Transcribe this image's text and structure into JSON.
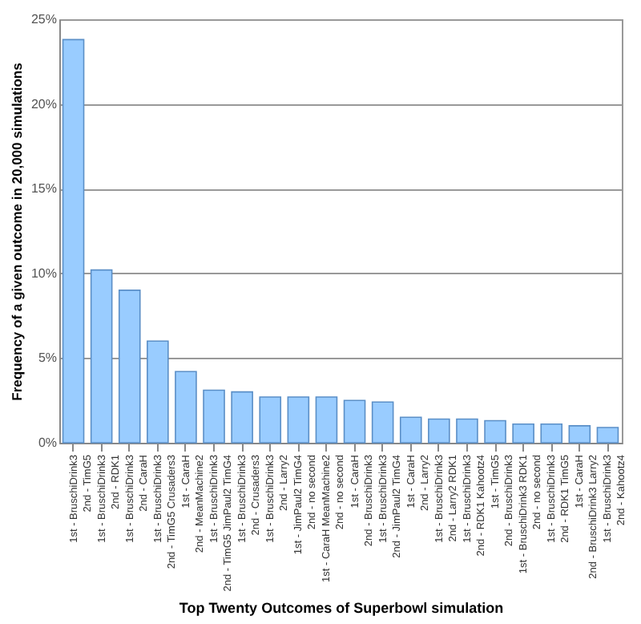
{
  "chart_data": {
    "type": "bar",
    "xlabel": "Top Twenty Outcomes of Superbowl simulation",
    "ylabel": "Frequency of a given outcome in 20,000 simulations",
    "categories": [
      "1st - BruschiDrink3\n2nd - TimG5",
      "1st - BruschiDrink3\n2nd - RDK1",
      "1st - BruschiDrink3\n2nd - CaraH",
      "1st - BruschiDrink3\n2nd - TimG5 Crusaders3",
      "1st - CaraH\n2nd - MeanMachine2",
      "1st - BruschiDrink3\n2nd - TimG5 JimPaul2 TimG4",
      "1st - BruschiDrink3\n2nd - Crusaders3",
      "1st - BruschiDrink3\n2nd - Larry2",
      "1st - JimPaul2 TimG4\n2nd - no second",
      "1st - CaraH MeanMachine2\n2nd - no second",
      "1st - CaraH\n2nd - BruschiDrink3",
      "1st - BruschiDrink3\n2nd - JimPaul2 TimG4",
      "1st - CaraH\n2nd - Larry2",
      "1st - BruschiDrink3\n2nd - Larry2 RDK1",
      "1st - BruschiDrink3\n2nd - RDK1 Kahootz4",
      "1st - TimG5\n2nd - BruschiDrink3",
      "1st - BruschiDrink3 RDK1\n2nd - no second",
      "1st - BruschiDrink3\n2nd - RDK1 TimG5",
      "1st - CaraH\n2nd - BruschiDrink3 Larry2",
      "1st - BruschiDrink3\n2nd - Kahootz4"
    ],
    "values": [
      23.8,
      10.2,
      9.0,
      6.0,
      4.2,
      3.1,
      3.0,
      2.7,
      2.7,
      2.7,
      2.5,
      2.4,
      1.5,
      1.4,
      1.4,
      1.3,
      1.1,
      1.1,
      1.0,
      0.9
    ],
    "color": "#99ccff",
    "ylim": [
      0,
      25
    ],
    "yticks": [
      {
        "value": 0,
        "label": "0%"
      },
      {
        "value": 5,
        "label": "5%"
      },
      {
        "value": 10,
        "label": "10%"
      },
      {
        "value": 15,
        "label": "15%"
      },
      {
        "value": 20,
        "label": "20%"
      },
      {
        "value": 25,
        "label": "25%"
      }
    ],
    "grid": "y"
  }
}
